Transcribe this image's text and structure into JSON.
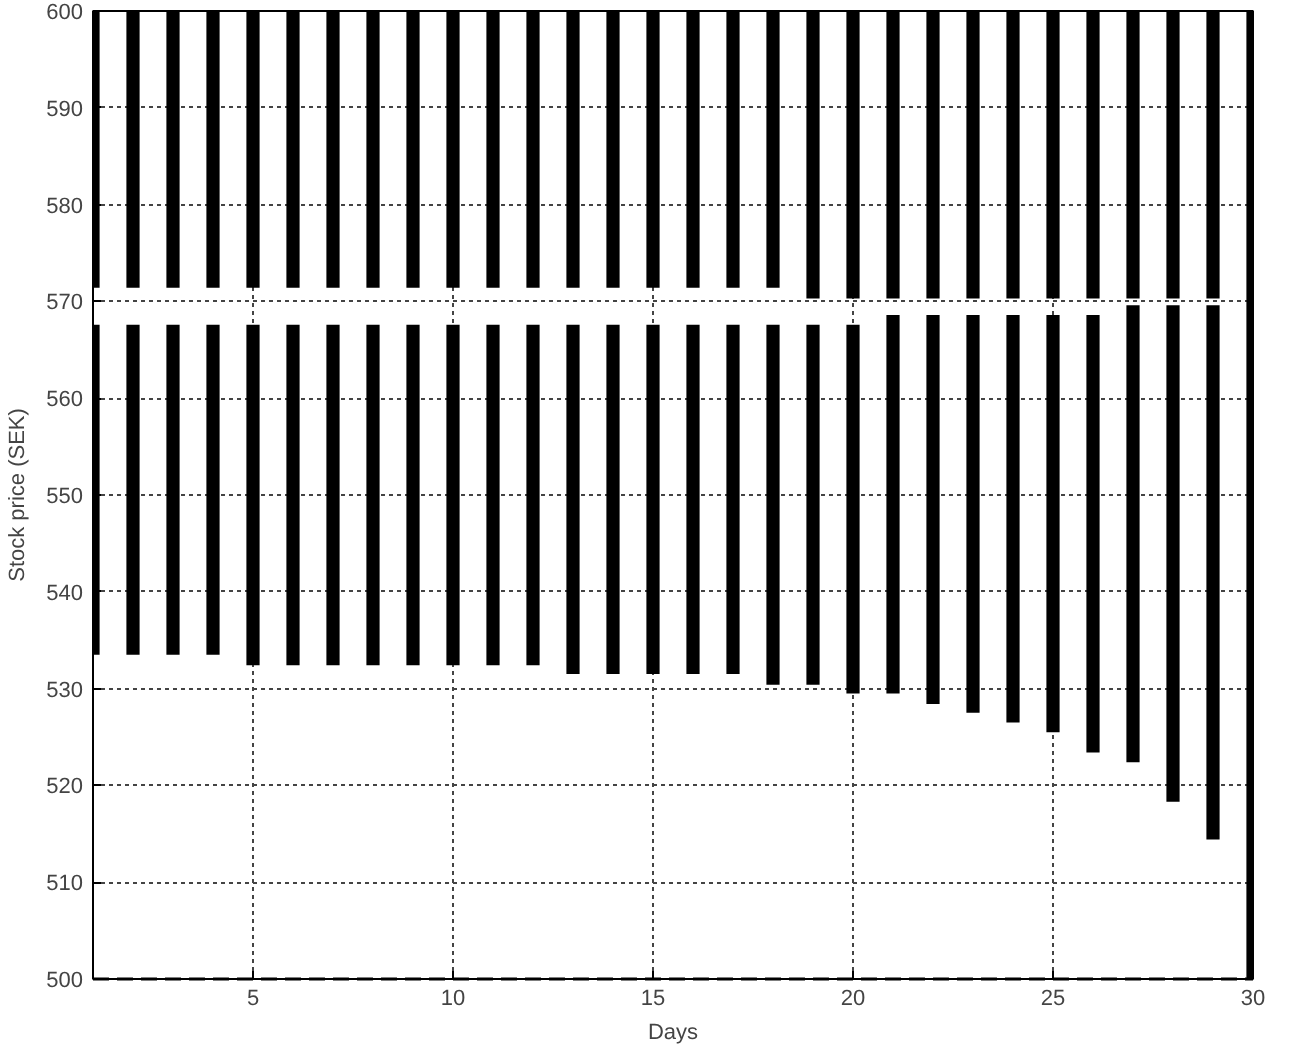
{
  "chart_data": {
    "type": "bar",
    "xlabel": "Days",
    "ylabel": "Stock price (SEK)",
    "x": [
      1,
      2,
      3,
      4,
      5,
      6,
      7,
      8,
      9,
      10,
      11,
      12,
      13,
      14,
      15,
      16,
      17,
      18,
      19,
      20,
      21,
      22,
      23,
      24,
      25,
      26,
      27,
      28,
      29,
      30
    ],
    "series": [
      {
        "color": "#000000",
        "base": [
          571.4,
          571.4,
          571.4,
          571.4,
          571.4,
          571.4,
          571.4,
          571.4,
          571.4,
          571.4,
          571.4,
          571.4,
          571.4,
          571.4,
          571.4,
          571.4,
          571.4,
          571.4,
          570.3,
          570.3,
          570.3,
          570.3,
          570.3,
          570.3,
          570.3,
          570.3,
          570.3,
          570.3,
          570.3,
          500
        ],
        "values": [
          28.6,
          28.6,
          28.6,
          28.6,
          28.6,
          28.6,
          28.6,
          28.6,
          28.6,
          28.6,
          28.6,
          28.6,
          28.6,
          28.6,
          28.6,
          28.6,
          28.6,
          28.6,
          29.7,
          29.7,
          29.7,
          29.7,
          29.7,
          29.7,
          29.7,
          29.7,
          29.7,
          29.7,
          29.7,
          100
        ]
      },
      {
        "color": "#000000",
        "base": [
          533.5,
          533.5,
          533.5,
          533.5,
          532.4,
          532.4,
          532.4,
          532.4,
          532.4,
          532.4,
          532.4,
          532.4,
          531.5,
          531.5,
          531.5,
          531.5,
          531.5,
          530.4,
          530.4,
          529.5,
          529.5,
          528.4,
          527.5,
          526.5,
          525.5,
          523.4,
          522.4,
          518.3,
          514.4,
          null
        ],
        "values": [
          34.1,
          34.1,
          34.1,
          34.1,
          35.2,
          35.2,
          35.2,
          35.2,
          35.2,
          35.2,
          35.2,
          35.2,
          36.1,
          36.1,
          36.1,
          36.1,
          36.1,
          37.2,
          37.2,
          38.1,
          39.1,
          40.2,
          41.1,
          42.1,
          43.1,
          45.2,
          47.2,
          51.3,
          55.2,
          null
        ]
      }
    ],
    "xlim": [
      1,
      30
    ],
    "xticks": [
      5,
      10,
      15,
      20,
      25,
      30
    ],
    "ylim": [
      500,
      600
    ],
    "yticks": [
      500,
      510,
      520,
      530,
      540,
      550,
      560,
      570,
      580,
      590,
      600
    ],
    "grid": true,
    "ref_lines": [
      {
        "axis": "y",
        "value": 500,
        "color": "#000000",
        "line_style": "dashed"
      }
    ]
  }
}
